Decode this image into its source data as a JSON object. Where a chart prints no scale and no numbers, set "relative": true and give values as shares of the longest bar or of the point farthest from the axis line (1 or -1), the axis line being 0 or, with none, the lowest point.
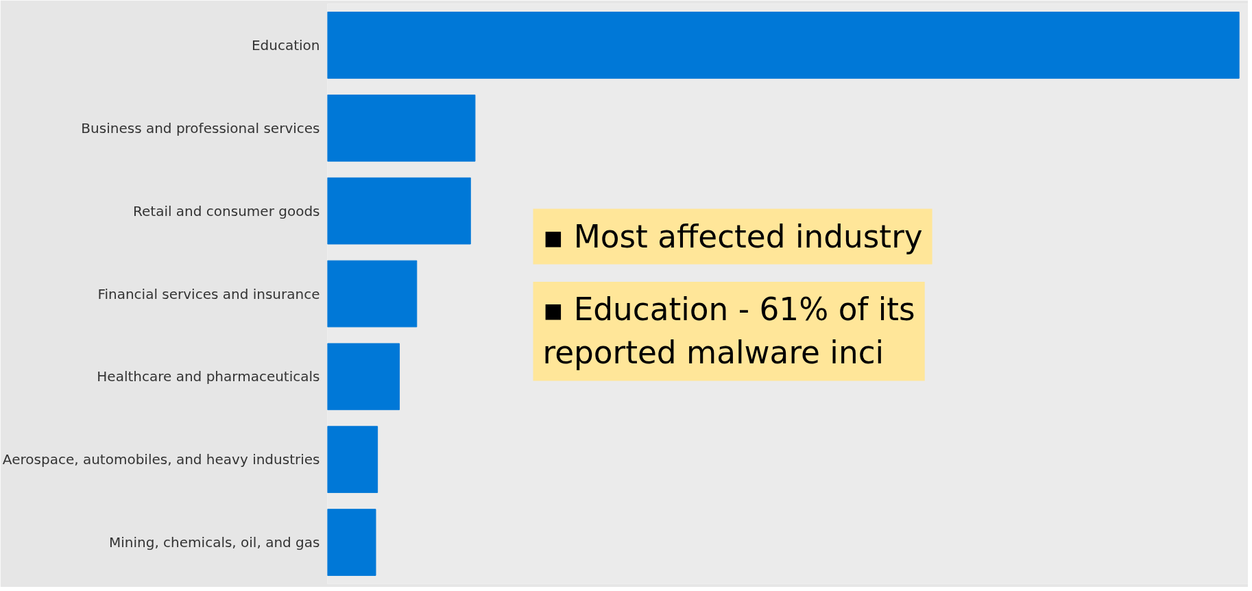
{
  "chart_data": {
    "type": "bar",
    "orientation": "horizontal",
    "relative": true,
    "categories": [
      "Education",
      "Business and professional services",
      "Retail and consumer goods",
      "Financial services and insurance",
      "Healthcare and pharmaceuticals",
      "Aerospace, automobiles, and heavy industries",
      "Mining, chemicals, oil, and gas"
    ],
    "values": [
      1,
      0.162,
      0.157,
      0.098,
      0.079,
      0.055,
      0.053
    ],
    "color": "#0078d7",
    "grid": false,
    "annotations": [
      "▪ Most affected industry",
      "▪ Education - 61% of its reported malware inci"
    ]
  }
}
